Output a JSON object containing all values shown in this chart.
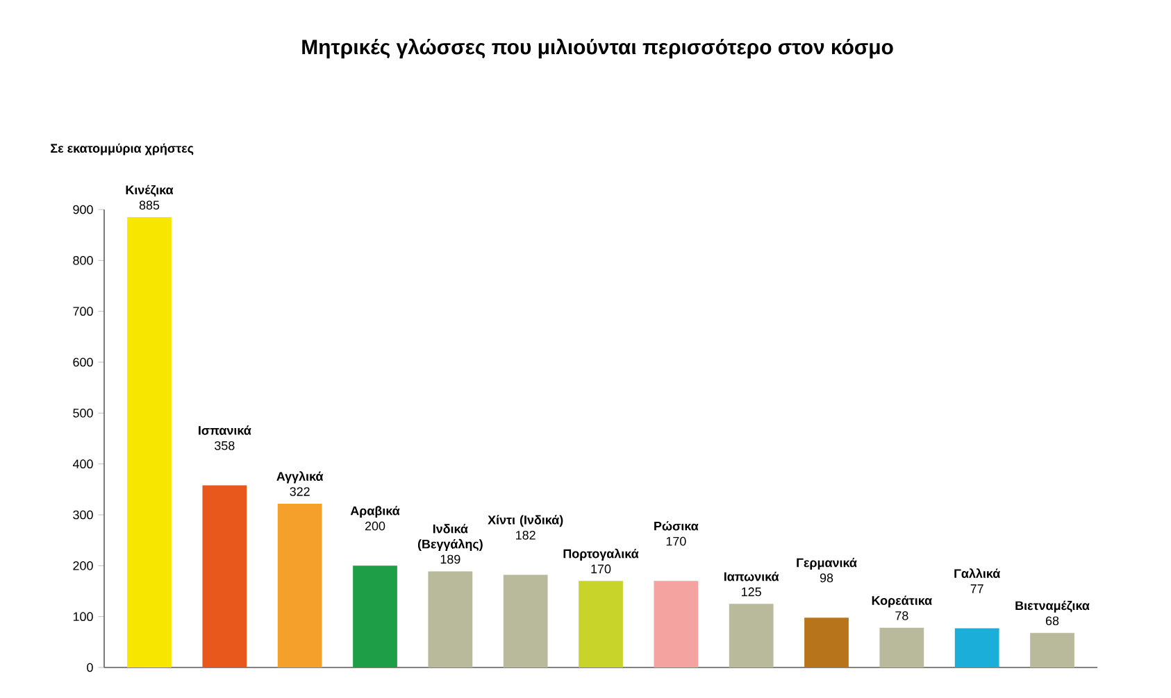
{
  "chart_data": {
    "type": "bar",
    "title": "Μητρικές γλώσσες που μιλιούνται περισσότερο στον κόσμο",
    "ylabel": "Σε εκατομμύρια χρήστες",
    "categories": [
      "Κινέζικα",
      "Ισπανικά",
      "Αγγλικά",
      "Αραβικά",
      "Ινδικά (Βεγγάλης)",
      "Χίντι (Ινδικά)",
      "Πορτογαλικά",
      "Ρώσικα",
      "Ιαπωνικά",
      "Γερμανικά",
      "Κορεάτικα",
      "Γαλλικά",
      "Βιετναμέζικα"
    ],
    "values": [
      885,
      358,
      322,
      200,
      189,
      182,
      170,
      170,
      125,
      98,
      78,
      77,
      68
    ],
    "colors": [
      "#f7e600",
      "#e8581c",
      "#f5a02a",
      "#1f9e48",
      "#b9b99c",
      "#b9b99c",
      "#c9d42a",
      "#f4a3a0",
      "#b9b99c",
      "#b8741a",
      "#b9b99c",
      "#1aaed8",
      "#b9b99c"
    ],
    "ylim": [
      0,
      900
    ],
    "yticks": [
      0,
      100,
      200,
      300,
      400,
      500,
      600,
      700,
      800,
      900
    ],
    "data_labels": true
  }
}
